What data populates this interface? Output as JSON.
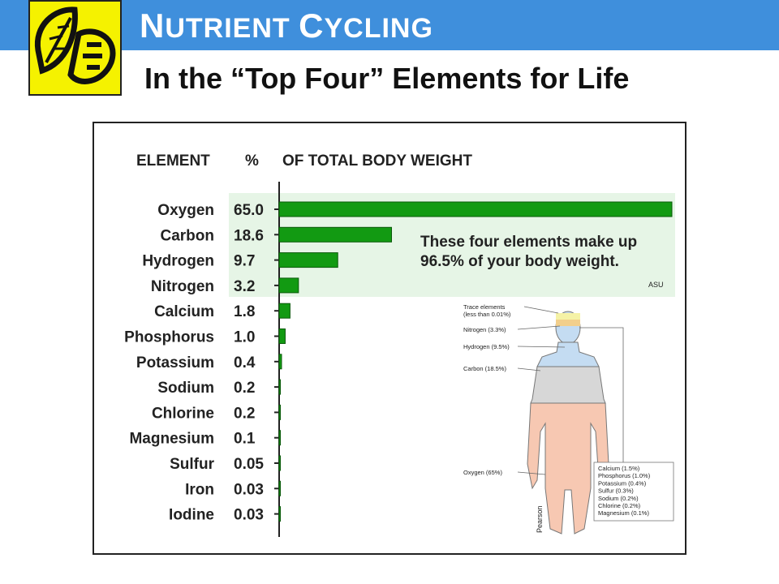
{
  "header": {
    "title_first_N": "N",
    "title_rest_1": "UTRIENT ",
    "title_first_C": "C",
    "title_rest_2": "YCLING",
    "subtitle": "In the “Top Four” Elements for Life",
    "bar_color": "#3f8fdc",
    "logo_color": "#f5f200"
  },
  "figure": {
    "col_element": "ELEMENT",
    "col_percent": "%",
    "col_weight": "OF TOTAL BODY WEIGHT",
    "callout_line1": "These four elements make up",
    "callout_line2": "96.5% of your body weight.",
    "credit_asu": "ASU",
    "credit_pearson": "Pearson",
    "bar_color": "#129a12",
    "highlight_color": "#e6f5e6"
  },
  "chart_data": {
    "type": "bar",
    "orientation": "horizontal",
    "categories": [
      "Oxygen",
      "Carbon",
      "Hydrogen",
      "Nitrogen",
      "Calcium",
      "Phosphorus",
      "Potassium",
      "Sodium",
      "Chlorine",
      "Magnesium",
      "Sulfur",
      "Iron",
      "Iodine"
    ],
    "values": [
      65.0,
      18.6,
      9.7,
      3.2,
      1.8,
      1.0,
      0.4,
      0.2,
      0.2,
      0.1,
      0.05,
      0.03,
      0.03
    ],
    "value_labels": [
      "65.0",
      "18.6",
      "9.7",
      "3.2",
      "1.8",
      "1.0",
      "0.4",
      "0.2",
      "0.2",
      "0.1",
      "0.05",
      "0.03",
      "0.03"
    ],
    "xlim": [
      0,
      65
    ],
    "highlight_top": 4
  },
  "body_diagram": {
    "left_labels": [
      "Trace elements\n(less than 0.01%)",
      "Nitrogen (3.3%)",
      "Hydrogen (9.5%)",
      "Carbon (18.5%)",
      "Oxygen (65%)"
    ],
    "right_labels": [
      "Calcium (1.5%)",
      "Phosphorus (1.0%)",
      "Potassium (0.4%)",
      "Sulfur (0.3%)",
      "Sodium (0.2%)",
      "Chlorine (0.2%)",
      "Magnesium (0.1%)"
    ],
    "colors": {
      "trace": "#f5f2a6",
      "nitrogen": "#f2cf8c",
      "hydrogen": "#c4dcf2",
      "carbon": "#d7d7d7",
      "oxygen": "#f7c8b2"
    }
  }
}
